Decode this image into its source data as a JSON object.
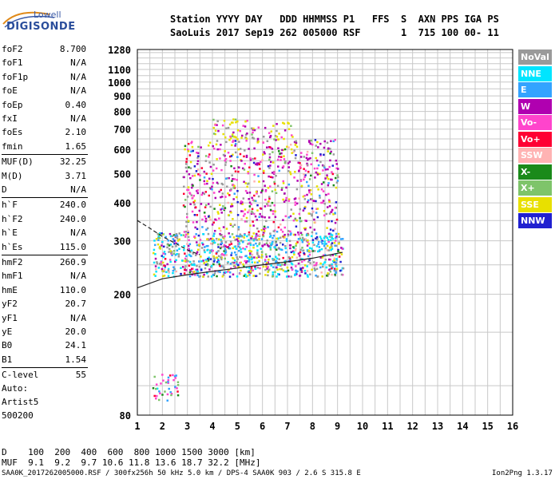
{
  "logo": {
    "line1": "Lowell",
    "line2": "DIGISONDE"
  },
  "header": {
    "line1": "Station YYYY DAY   DDD HHMMSS P1   FFS  S  AXN PPS IGA PS",
    "line2": "SaoLuis 2017 Sep19 262 005000 RSF       1  715 100 00- 11"
  },
  "params": [
    {
      "label": "foF2",
      "value": "8.700"
    },
    {
      "label": "foF1",
      "value": "N/A"
    },
    {
      "label": "foF1p",
      "value": "N/A"
    },
    {
      "label": "foE",
      "value": "N/A"
    },
    {
      "label": "foEp",
      "value": "0.40"
    },
    {
      "label": "fxI",
      "value": "N/A"
    },
    {
      "label": "foEs",
      "value": "2.10"
    },
    {
      "label": "fmin",
      "value": "1.65"
    },
    {
      "label": "MUF(D)",
      "value": "32.25"
    },
    {
      "label": "M(D)",
      "value": "3.71"
    },
    {
      "label": "D",
      "value": "N/A"
    },
    {
      "label": "h`F",
      "value": "240.0"
    },
    {
      "label": "h`F2",
      "value": "240.0"
    },
    {
      "label": "h`E",
      "value": "N/A"
    },
    {
      "label": "h`Es",
      "value": "115.0"
    },
    {
      "label": "hmF2",
      "value": "260.9"
    },
    {
      "label": "hmF1",
      "value": "N/A"
    },
    {
      "label": "hmE",
      "value": "110.0"
    },
    {
      "label": "yF2",
      "value": "20.7"
    },
    {
      "label": "yF1",
      "value": "N/A"
    },
    {
      "label": "yE",
      "value": "20.0"
    },
    {
      "label": "B0",
      "value": "24.1"
    },
    {
      "label": "B1",
      "value": "1.54"
    },
    {
      "label": "C-level",
      "value": "55"
    }
  ],
  "auto": {
    "line1": "Auto:",
    "line2": "Artist5",
    "line3": "500200"
  },
  "legend": [
    {
      "label": "NoVal",
      "color": "#9a9a9a"
    },
    {
      "label": "NNE",
      "color": "#00e5ff"
    },
    {
      "label": "E",
      "color": "#33a3ff"
    },
    {
      "label": "W",
      "color": "#b000b0"
    },
    {
      "label": "Vo-",
      "color": "#ff44cc"
    },
    {
      "label": "Vo+",
      "color": "#ff0033"
    },
    {
      "label": "SSW",
      "color": "#ffb3b3"
    },
    {
      "label": "X-",
      "color": "#1a8a1a"
    },
    {
      "label": "X+",
      "color": "#7ec46a"
    },
    {
      "label": "SSE",
      "color": "#e8e000"
    },
    {
      "label": "NNW",
      "color": "#2020d0"
    }
  ],
  "footer": {
    "d_line": "D    100  200  400  600  800 1000 1500 3000 [km]",
    "muf_line": "MUF  9.1  9.2  9.7 10.6 11.8 13.6 18.7 32.2 [MHz]",
    "file_line": "SAA0K_2017262005000.RSF / 300fx256h 50 kHz 5.0 km / DPS-4 SAA0K 903 / 2.6 S 315.8 E",
    "version": "Ion2Png 1.3.17"
  },
  "chart_data": {
    "type": "scatter",
    "title": "",
    "xlabel": "",
    "ylabel": "",
    "xlim": [
      1,
      16
    ],
    "ylim": [
      80,
      1280
    ],
    "yscale": "log",
    "grid": true,
    "x_ticks": [
      1,
      2,
      3,
      4,
      5,
      6,
      7,
      8,
      9,
      10,
      11,
      12,
      13,
      14,
      15,
      16
    ],
    "y_ticks": [
      80,
      200,
      300,
      400,
      500,
      600,
      700,
      800,
      900,
      1000,
      1100,
      1280
    ],
    "legend_placement": "right",
    "regions": [
      {
        "name": "F-trace",
        "x": [
          1.6,
          9.2
        ],
        "y": [
          230,
          320
        ],
        "note": "dense echoes"
      },
      {
        "name": "spread-F",
        "x": [
          2.8,
          9.0
        ],
        "y": [
          320,
          650
        ]
      },
      {
        "name": "multi-hop",
        "x": [
          4.0,
          7.2
        ],
        "y": [
          650,
          760
        ]
      },
      {
        "name": "Es",
        "x": [
          1.5,
          2.6
        ],
        "y": [
          90,
          110
        ]
      }
    ],
    "profile_curves": [
      {
        "name": "x-mode trace",
        "x": [
          1.0,
          2,
          3,
          4,
          5,
          6,
          7,
          8,
          9.2
        ],
        "y": [
          210,
          225,
          232,
          238,
          244,
          250,
          256,
          263,
          275
        ]
      },
      {
        "name": "dashed trace",
        "x": [
          1.0,
          1.5,
          2.0,
          2.5,
          3.0,
          3.5
        ],
        "y": [
          350,
          330,
          310,
          295,
          280,
          270
        ]
      }
    ]
  }
}
